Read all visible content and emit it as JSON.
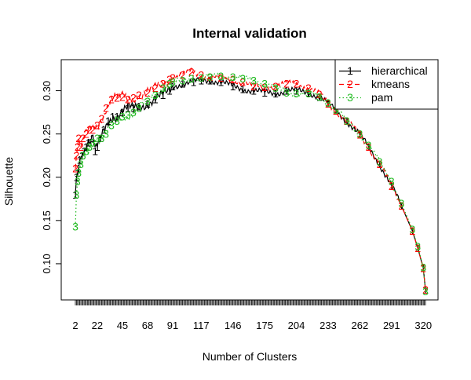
{
  "chart_data": {
    "type": "line",
    "title": "Internal validation",
    "xlabel": "Number of Clusters",
    "ylabel": "Silhouette",
    "x_range": [
      2,
      322
    ],
    "ylim": [
      0.06,
      0.325
    ],
    "x_tick_labels": [
      "2",
      "22",
      "45",
      "68",
      "91",
      "117",
      "146",
      "175",
      "204",
      "233",
      "262",
      "291",
      "320"
    ],
    "y_tick_labels": [
      "0.10",
      "0.15",
      "0.20",
      "0.25",
      "0.30"
    ],
    "legend_position": "top-right",
    "grid": false,
    "series": [
      {
        "name": "hierarchical",
        "marker": "1",
        "color": "#000000",
        "line_style": "solid",
        "points": [
          [
            2,
            0.18
          ],
          [
            3,
            0.2
          ],
          [
            4,
            0.205
          ],
          [
            5,
            0.21
          ],
          [
            6,
            0.22
          ],
          [
            8,
            0.225
          ],
          [
            10,
            0.23
          ],
          [
            12,
            0.235
          ],
          [
            14,
            0.24
          ],
          [
            16,
            0.24
          ],
          [
            18,
            0.245
          ],
          [
            20,
            0.23
          ],
          [
            22,
            0.235
          ],
          [
            25,
            0.245
          ],
          [
            28,
            0.255
          ],
          [
            32,
            0.265
          ],
          [
            36,
            0.27
          ],
          [
            40,
            0.27
          ],
          [
            45,
            0.275
          ],
          [
            50,
            0.28
          ],
          [
            55,
            0.28
          ],
          [
            60,
            0.282
          ],
          [
            68,
            0.285
          ],
          [
            75,
            0.29
          ],
          [
            82,
            0.295
          ],
          [
            88,
            0.3
          ],
          [
            91,
            0.305
          ],
          [
            100,
            0.308
          ],
          [
            110,
            0.31
          ],
          [
            117,
            0.312
          ],
          [
            125,
            0.312
          ],
          [
            135,
            0.31
          ],
          [
            146,
            0.305
          ],
          [
            155,
            0.302
          ],
          [
            165,
            0.3
          ],
          [
            175,
            0.298
          ],
          [
            185,
            0.297
          ],
          [
            195,
            0.3
          ],
          [
            204,
            0.3
          ],
          [
            215,
            0.298
          ],
          [
            225,
            0.293
          ],
          [
            233,
            0.285
          ],
          [
            240,
            0.277
          ],
          [
            250,
            0.265
          ],
          [
            262,
            0.249
          ],
          [
            270,
            0.235
          ],
          [
            280,
            0.215
          ],
          [
            291,
            0.19
          ],
          [
            300,
            0.167
          ],
          [
            310,
            0.138
          ],
          [
            315,
            0.118
          ],
          [
            320,
            0.095
          ],
          [
            322,
            0.07
          ]
        ]
      },
      {
        "name": "kmeans",
        "marker": "2",
        "color": "#ff0000",
        "line_style": "dashed",
        "points": [
          [
            2,
            0.21
          ],
          [
            3,
            0.225
          ],
          [
            4,
            0.235
          ],
          [
            5,
            0.245
          ],
          [
            7,
            0.235
          ],
          [
            9,
            0.245
          ],
          [
            12,
            0.25
          ],
          [
            15,
            0.255
          ],
          [
            18,
            0.255
          ],
          [
            22,
            0.26
          ],
          [
            26,
            0.268
          ],
          [
            30,
            0.28
          ],
          [
            35,
            0.29
          ],
          [
            40,
            0.292
          ],
          [
            45,
            0.293
          ],
          [
            50,
            0.29
          ],
          [
            55,
            0.292
          ],
          [
            60,
            0.295
          ],
          [
            68,
            0.298
          ],
          [
            75,
            0.303
          ],
          [
            82,
            0.308
          ],
          [
            88,
            0.313
          ],
          [
            91,
            0.315
          ],
          [
            100,
            0.318
          ],
          [
            108,
            0.322
          ],
          [
            117,
            0.318
          ],
          [
            125,
            0.316
          ],
          [
            135,
            0.315
          ],
          [
            146,
            0.313
          ],
          [
            155,
            0.31
          ],
          [
            165,
            0.305
          ],
          [
            175,
            0.304
          ],
          [
            185,
            0.305
          ],
          [
            195,
            0.308
          ],
          [
            204,
            0.308
          ],
          [
            215,
            0.303
          ],
          [
            225,
            0.296
          ],
          [
            233,
            0.285
          ],
          [
            240,
            0.277
          ],
          [
            250,
            0.265
          ],
          [
            262,
            0.249
          ],
          [
            270,
            0.235
          ],
          [
            280,
            0.215
          ],
          [
            291,
            0.19
          ],
          [
            300,
            0.167
          ],
          [
            310,
            0.138
          ],
          [
            315,
            0.118
          ],
          [
            320,
            0.095
          ],
          [
            322,
            0.07
          ]
        ]
      },
      {
        "name": "pam",
        "marker": "3",
        "color": "#22bb22",
        "line_style": "dotted",
        "points": [
          [
            2,
            0.143
          ],
          [
            3,
            0.18
          ],
          [
            4,
            0.195
          ],
          [
            5,
            0.205
          ],
          [
            7,
            0.215
          ],
          [
            9,
            0.225
          ],
          [
            12,
            0.23
          ],
          [
            15,
            0.235
          ],
          [
            18,
            0.24
          ],
          [
            22,
            0.245
          ],
          [
            26,
            0.245
          ],
          [
            30,
            0.25
          ],
          [
            35,
            0.26
          ],
          [
            40,
            0.265
          ],
          [
            45,
            0.27
          ],
          [
            50,
            0.272
          ],
          [
            55,
            0.275
          ],
          [
            60,
            0.28
          ],
          [
            68,
            0.288
          ],
          [
            75,
            0.295
          ],
          [
            82,
            0.303
          ],
          [
            88,
            0.308
          ],
          [
            91,
            0.31
          ],
          [
            100,
            0.312
          ],
          [
            108,
            0.314
          ],
          [
            117,
            0.315
          ],
          [
            125,
            0.316
          ],
          [
            135,
            0.317
          ],
          [
            146,
            0.316
          ],
          [
            155,
            0.314
          ],
          [
            165,
            0.312
          ],
          [
            175,
            0.308
          ],
          [
            185,
            0.303
          ],
          [
            195,
            0.298
          ],
          [
            204,
            0.297
          ],
          [
            215,
            0.297
          ],
          [
            225,
            0.293
          ],
          [
            233,
            0.286
          ],
          [
            240,
            0.278
          ],
          [
            250,
            0.265
          ],
          [
            262,
            0.25
          ],
          [
            270,
            0.237
          ],
          [
            280,
            0.218
          ],
          [
            291,
            0.195
          ],
          [
            300,
            0.17
          ],
          [
            310,
            0.14
          ],
          [
            315,
            0.12
          ],
          [
            320,
            0.096
          ],
          [
            322,
            0.068
          ]
        ]
      }
    ]
  }
}
